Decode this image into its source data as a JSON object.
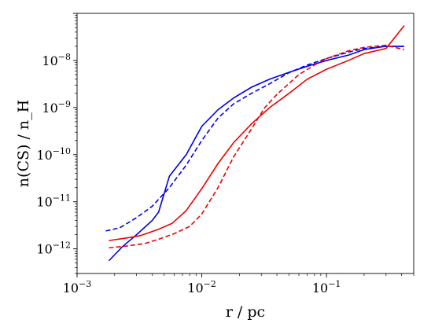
{
  "chart_data": {
    "type": "line",
    "xlabel": "r / pc",
    "ylabel": "n(CS) / n_H",
    "x_scale": "log",
    "y_scale": "log",
    "xlim": [
      0.001,
      0.5
    ],
    "ylim": [
      3e-13,
      1e-07
    ],
    "grid": false,
    "x_ticks": [
      {
        "value": 0.001,
        "label": "10^-3"
      },
      {
        "value": 0.01,
        "label": "10^-2"
      },
      {
        "value": 0.1,
        "label": "10^-1"
      }
    ],
    "y_ticks": [
      {
        "value": 1e-12,
        "label": "10^-12"
      },
      {
        "value": 1e-11,
        "label": "10^-11"
      },
      {
        "value": 1e-10,
        "label": "10^-10"
      },
      {
        "value": 1e-09,
        "label": "10^-9"
      },
      {
        "value": 1e-08,
        "label": "10^-8"
      }
    ],
    "series": [
      {
        "color": "#0000ee",
        "linestyle": "solid",
        "x": [
          0.0018,
          0.0023,
          0.003,
          0.004,
          0.0045,
          0.0055,
          0.0075,
          0.01,
          0.0135,
          0.018,
          0.025,
          0.035,
          0.05,
          0.07,
          0.1,
          0.15,
          0.2,
          0.3,
          0.42
        ],
        "y": [
          5.6e-13,
          1.1e-12,
          2e-12,
          4e-12,
          6e-12,
          3.5e-11,
          1e-10,
          4e-10,
          9e-10,
          1.6e-09,
          2.7e-09,
          4e-09,
          5.6e-09,
          7.5e-09,
          1e-08,
          1.3e-08,
          1.7e-08,
          2e-08,
          2e-08
        ]
      },
      {
        "color": "#0000ee",
        "linestyle": "dashed",
        "x": [
          0.0017,
          0.0022,
          0.003,
          0.004,
          0.0055,
          0.0075,
          0.01,
          0.0135,
          0.018,
          0.025,
          0.035,
          0.05,
          0.07,
          0.1,
          0.15,
          0.2,
          0.3,
          0.42
        ],
        "y": [
          2.4e-12,
          2.8e-12,
          4.6e-12,
          8e-12,
          2e-11,
          6e-11,
          2e-10,
          6e-10,
          1.2e-09,
          2e-09,
          3.2e-09,
          5.5e-09,
          8e-09,
          1.1e-08,
          1.5e-08,
          1.8e-08,
          2e-08,
          2e-08
        ]
      },
      {
        "color": "#ee0000",
        "linestyle": "solid",
        "x": [
          0.0018,
          0.0025,
          0.0032,
          0.0045,
          0.0058,
          0.0075,
          0.01,
          0.0135,
          0.018,
          0.025,
          0.035,
          0.05,
          0.07,
          0.1,
          0.15,
          0.2,
          0.3,
          0.42
        ],
        "y": [
          1.5e-12,
          1.7e-12,
          1.9e-12,
          2.6e-12,
          3.5e-12,
          6.5e-12,
          1.9e-11,
          6.5e-11,
          1.8e-10,
          4.5e-10,
          1e-09,
          2e-09,
          4e-09,
          6.5e-09,
          1e-08,
          1.4e-08,
          1.8e-08,
          5.5e-08
        ]
      },
      {
        "color": "#ee0000",
        "linestyle": "dashed",
        "x": [
          0.0018,
          0.0025,
          0.0035,
          0.0045,
          0.006,
          0.008,
          0.01,
          0.0135,
          0.018,
          0.025,
          0.032,
          0.04,
          0.06,
          0.08,
          0.1,
          0.15,
          0.2,
          0.3,
          0.42
        ],
        "y": [
          1.05e-12,
          1.15e-12,
          1.3e-12,
          1.6e-12,
          2.1e-12,
          3e-12,
          5.5e-12,
          2e-11,
          9e-11,
          3.5e-10,
          1e-09,
          1.9e-09,
          5e-09,
          8e-09,
          1.1e-08,
          1.6e-08,
          1.9e-08,
          2.1e-08,
          1.7e-08
        ]
      }
    ]
  }
}
